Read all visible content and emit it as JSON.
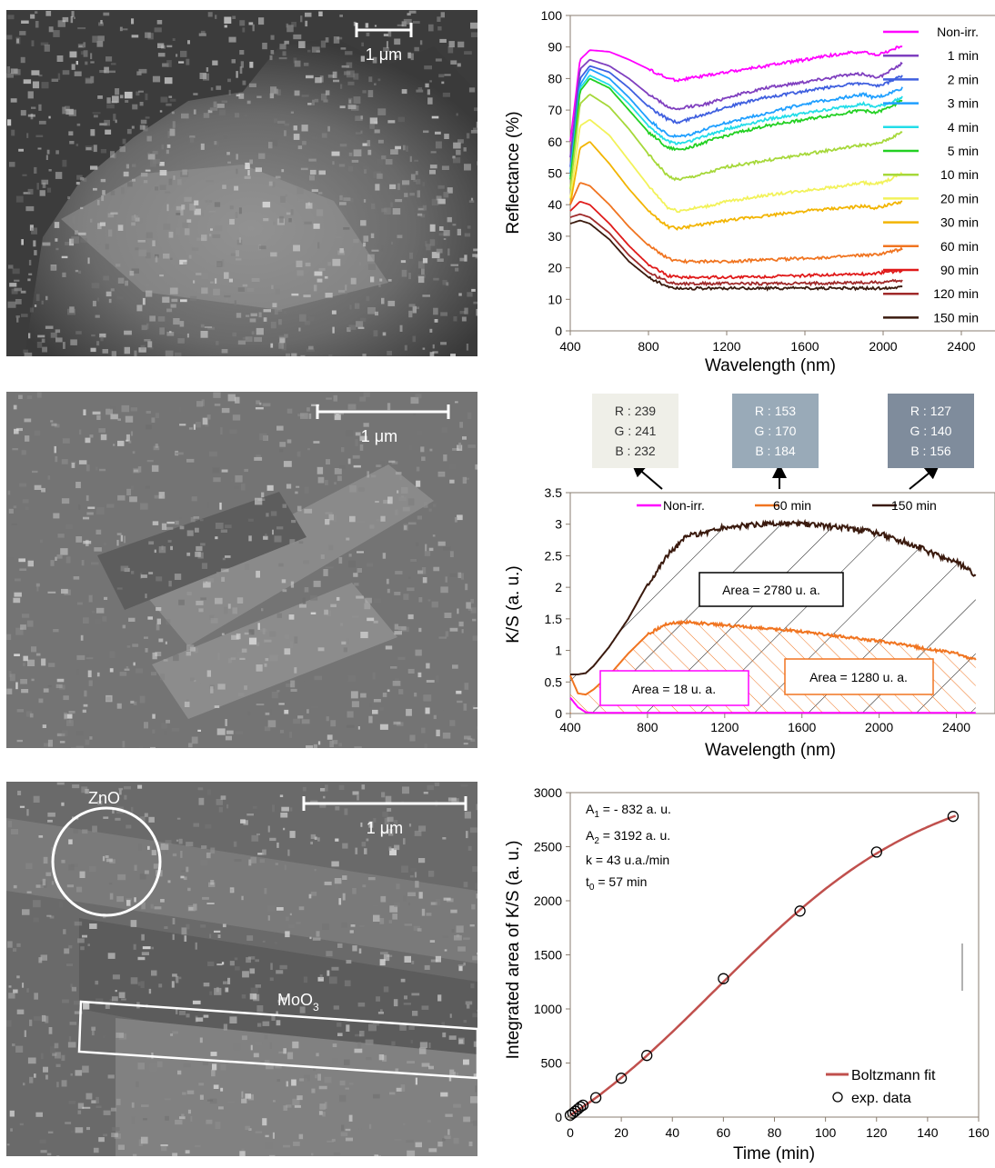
{
  "sem_panels": [
    {
      "scale_label": "1 μm"
    },
    {
      "scale_label": "1 μm"
    },
    {
      "scale_label": "1 μm",
      "zno_label": "ZnO",
      "moo3_label": "MoO",
      "moo3_sub": "3"
    }
  ],
  "colors": {
    "Non-irr.": "#ff00ff",
    "1 min": "#7f3fbf",
    "2 min": "#3f5fdf",
    "3 min": "#1f9fff",
    "4 min": "#22dde8",
    "5 min": "#22d022",
    "10 min": "#a6d83a",
    "20 min": "#f2f25a",
    "30 min": "#f2b400",
    "60 min": "#f07420",
    "90 min": "#e01a1a",
    "120 min": "#a02a2a",
    "150 min": "#3a1a0e",
    "fit": "#c0504d"
  },
  "chart_data": [
    {
      "type": "line",
      "xlabel": "Wavelength (nm)",
      "ylabel": "Reflectance (%)",
      "xlim": [
        400,
        2600
      ],
      "ylim": [
        0,
        100
      ],
      "xticks": [
        400,
        800,
        1200,
        1600,
        2000,
        2400
      ],
      "yticks": [
        0,
        10,
        20,
        30,
        40,
        50,
        60,
        70,
        80,
        90,
        100
      ],
      "legend_position": "right",
      "x": [
        400,
        450,
        500,
        600,
        700,
        800,
        900,
        950,
        1000,
        1100,
        1200,
        1400,
        1600,
        1800,
        1900,
        1950,
        2000,
        2100
      ],
      "series": [
        {
          "name": "Non-irr.",
          "values": [
            60,
            86,
            89,
            88.5,
            86,
            83,
            80,
            79.5,
            80,
            81,
            82,
            84,
            86,
            88,
            88.5,
            87.5,
            88,
            90.5
          ]
        },
        {
          "name": "1 min",
          "values": [
            55,
            83,
            86,
            84,
            80,
            75,
            71,
            70,
            71,
            72,
            74,
            77,
            79,
            81,
            81.5,
            80.5,
            81,
            85
          ]
        },
        {
          "name": "2 min",
          "values": [
            52,
            80,
            84,
            82,
            77,
            71,
            67,
            66,
            67,
            69,
            71,
            74,
            76,
            78,
            78.5,
            77.5,
            78,
            81
          ]
        },
        {
          "name": "3 min",
          "values": [
            50,
            78,
            83,
            80,
            74,
            67,
            62,
            61.5,
            62,
            64,
            66,
            69,
            72,
            74,
            75,
            74,
            74.5,
            77
          ]
        },
        {
          "name": "4 min",
          "values": [
            49,
            77,
            81,
            78,
            72,
            65,
            60,
            59.5,
            60,
            62,
            64,
            67,
            69,
            71,
            72,
            71,
            71.5,
            74
          ]
        },
        {
          "name": "5 min",
          "values": [
            48,
            76,
            80,
            77,
            70,
            63,
            58,
            57.5,
            58,
            60,
            62,
            65,
            67,
            69,
            70,
            69,
            70,
            73
          ]
        },
        {
          "name": "10 min",
          "values": [
            45,
            72,
            75,
            71,
            64,
            56,
            49,
            48,
            48.5,
            50,
            52,
            54,
            56,
            58,
            59,
            59,
            60,
            63
          ]
        },
        {
          "name": "20 min",
          "values": [
            42,
            65,
            67,
            62,
            54,
            46,
            39,
            38,
            38.5,
            39.5,
            41,
            43,
            44.5,
            46,
            47,
            46.5,
            47,
            50
          ]
        },
        {
          "name": "30 min",
          "values": [
            40,
            58,
            60,
            53,
            45,
            38,
            33,
            32.5,
            33,
            34,
            35,
            36.5,
            38,
            39,
            39.5,
            39,
            39.5,
            41
          ]
        },
        {
          "name": "60 min",
          "values": [
            40,
            47,
            46,
            40,
            33,
            27,
            23,
            22,
            22,
            22,
            22,
            22.5,
            23,
            23.5,
            24,
            24,
            24.5,
            26
          ]
        },
        {
          "name": "90 min",
          "values": [
            38,
            41,
            40,
            34,
            27,
            21,
            17.5,
            17,
            17,
            17,
            17,
            17.2,
            17.5,
            18,
            18,
            18.2,
            18.5,
            19
          ]
        },
        {
          "name": "120 min",
          "values": [
            36,
            37,
            36,
            31,
            24,
            18.5,
            15.5,
            15,
            15,
            15,
            15,
            15,
            15,
            15.2,
            15.3,
            15.3,
            15.5,
            16
          ]
        },
        {
          "name": "150 min",
          "values": [
            34,
            35,
            34,
            29,
            22,
            17,
            14,
            13.5,
            13.5,
            13.5,
            13.5,
            13.5,
            13.5,
            13.5,
            13.5,
            13.5,
            13.5,
            14
          ]
        }
      ]
    },
    {
      "type": "area",
      "xlabel": "Wavelength (nm)",
      "ylabel": "K/S (a. u.)",
      "xlim": [
        400,
        2600
      ],
      "ylim": [
        0,
        3.5
      ],
      "xticks": [
        400,
        800,
        1200,
        1600,
        2000,
        2400
      ],
      "yticks": [
        0,
        0.5,
        1,
        1.5,
        2,
        2.5,
        3,
        3.5
      ],
      "legend_position": "top",
      "x": [
        400,
        440,
        480,
        520,
        600,
        700,
        800,
        900,
        1000,
        1200,
        1400,
        1600,
        1800,
        2000,
        2100,
        2200,
        2300,
        2400,
        2500
      ],
      "series": [
        {
          "name": "Non-irr.",
          "values": [
            0.25,
            0.1,
            0.02,
            0.01,
            0.01,
            0.01,
            0.01,
            0.01,
            0.01,
            0.01,
            0.01,
            0.01,
            0.01,
            0.01,
            0.01,
            0.01,
            0.01,
            0.01,
            0.01
          ]
        },
        {
          "name": "60 min",
          "values": [
            0.6,
            0.32,
            0.3,
            0.38,
            0.6,
            0.95,
            1.25,
            1.42,
            1.45,
            1.4,
            1.35,
            1.3,
            1.22,
            1.15,
            1.1,
            1.05,
            1.0,
            0.95,
            0.85
          ]
        },
        {
          "name": "150 min",
          "values": [
            0.62,
            0.62,
            0.64,
            0.75,
            1.05,
            1.5,
            2.05,
            2.5,
            2.8,
            2.95,
            3.0,
            3.0,
            2.95,
            2.85,
            2.75,
            2.65,
            2.5,
            2.4,
            2.2
          ]
        }
      ],
      "annotations": [
        "Area = 2780 u. a.",
        "Area = 1280 u. a.",
        "Area = 18 u. a."
      ],
      "rgb_boxes": [
        {
          "lines": [
            "R : 239",
            "G : 241",
            "B : 232"
          ],
          "color": "#efefe8",
          "text_color": "#333333",
          "points_to": "Non-irr."
        },
        {
          "lines": [
            "R : 153",
            "G : 170",
            "B : 184"
          ],
          "color": "#99aab8",
          "text_color": "#ffffff",
          "points_to": "60 min"
        },
        {
          "lines": [
            "R : 127",
            "G : 140",
            "B : 156"
          ],
          "color": "#7f8c9c",
          "text_color": "#ffffff",
          "points_to": "150 min"
        }
      ]
    },
    {
      "type": "scatter",
      "xlabel": "Time (min)",
      "ylabel": "Integrated area of K/S (a. u.)",
      "xlim": [
        0,
        160
      ],
      "ylim": [
        0,
        3000
      ],
      "xticks": [
        0,
        20,
        40,
        60,
        80,
        100,
        120,
        140,
        160
      ],
      "yticks": [
        0,
        500,
        1000,
        1500,
        2000,
        2500,
        3000
      ],
      "legend_position": "bottom-right",
      "series": [
        {
          "name": "exp. data",
          "x": [
            0,
            1,
            2,
            3,
            4,
            5,
            10,
            20,
            30,
            60,
            90,
            120,
            150
          ],
          "y": [
            18,
            35,
            55,
            75,
            95,
            110,
            180,
            360,
            570,
            1280,
            1905,
            2450,
            2780
          ]
        },
        {
          "name": "Boltzmann fit",
          "fit": {
            "A1": -832,
            "A2": 3192,
            "t0": 57,
            "k": 43
          }
        }
      ],
      "params": {
        "a1": {
          "sym": "A",
          "sub": "1",
          "text": " = - 832 a. u."
        },
        "a2": {
          "sym": "A",
          "sub": "2",
          "text": " = 3192 a. u."
        },
        "k": "k = 43 u.a./min",
        "t0": {
          "sym": "t",
          "sub": "0",
          "text": " = 57 min"
        }
      }
    }
  ]
}
